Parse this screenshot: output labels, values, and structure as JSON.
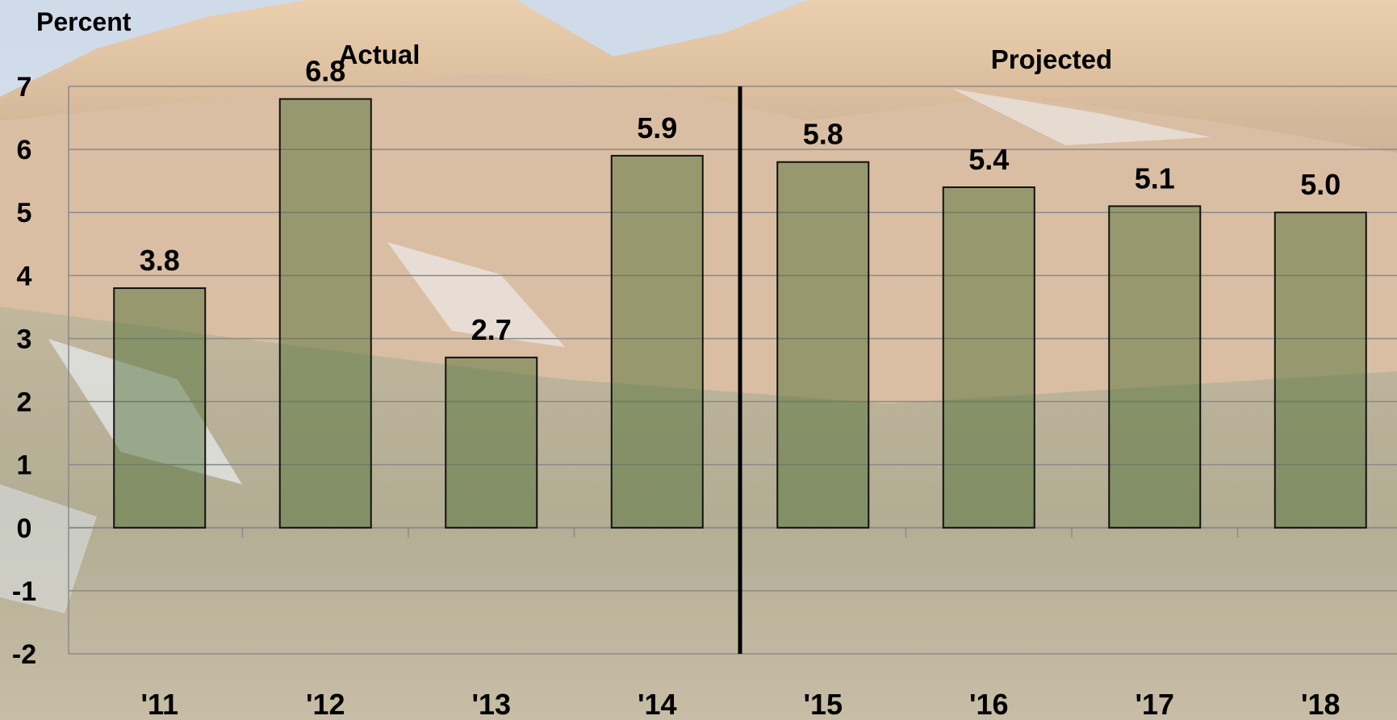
{
  "chart_data": {
    "type": "bar",
    "ylabel": "Percent",
    "ylim": [
      -2,
      7
    ],
    "yticks": [
      "7",
      "6",
      "5",
      "4",
      "3",
      "2",
      "1",
      "0",
      "-1",
      "-2"
    ],
    "categories": [
      "'11",
      "'12",
      "'13",
      "'14",
      "'15",
      "'16",
      "'17",
      "'18"
    ],
    "values": [
      3.8,
      6.8,
      2.7,
      5.9,
      5.8,
      5.4,
      5.1,
      5.0
    ],
    "value_labels": [
      "3.8",
      "6.8",
      "2.7",
      "5.9",
      "5.8",
      "5.4",
      "5.1",
      "5.0"
    ],
    "section_labels": {
      "actual": "Actual",
      "projected": "Projected"
    },
    "divider_after_index": 3,
    "grid": true,
    "colors": {
      "bar": "#4a6a2e",
      "bar_edge": "#111111",
      "text": "#000000",
      "grid": "#8a8a8a"
    },
    "background": "mountain-landscape-photo"
  }
}
